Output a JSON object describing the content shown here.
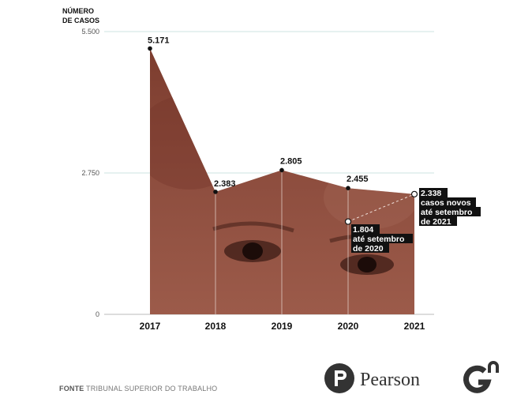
{
  "chart_data": {
    "type": "area",
    "ytitle_line1": "NÚMERO",
    "ytitle_line2": "DE CASOS",
    "yticks": [
      0,
      2750,
      5500
    ],
    "ytick_labels": [
      "0",
      "2.750",
      "5.500"
    ],
    "ylim": [
      0,
      5500
    ],
    "categories": [
      "2017",
      "2018",
      "2019",
      "2020",
      "2021"
    ],
    "values": [
      5171,
      2383,
      2805,
      2455,
      2338
    ],
    "value_labels": [
      "5.171",
      "2.383",
      "2.805",
      "2.455",
      "2.338"
    ],
    "partial_point": {
      "category": "2020",
      "value": 1804
    },
    "annotation_2020": [
      "1.804",
      "até setembro",
      "de 2020"
    ],
    "annotation_2021": [
      "2.338",
      "casos novos",
      "até setembro",
      "de 2021"
    ],
    "grid": true,
    "fill_color": "#8a4a3c"
  },
  "footer": {
    "source_label": "FONTE",
    "source_text": "TRIBUNAL SUPERIOR DO TRABALHO"
  },
  "logos": {
    "pearson_text": "Pearson",
    "pearson_icon": "pearson-p-icon",
    "g1_icon": "gn-logo-icon"
  }
}
